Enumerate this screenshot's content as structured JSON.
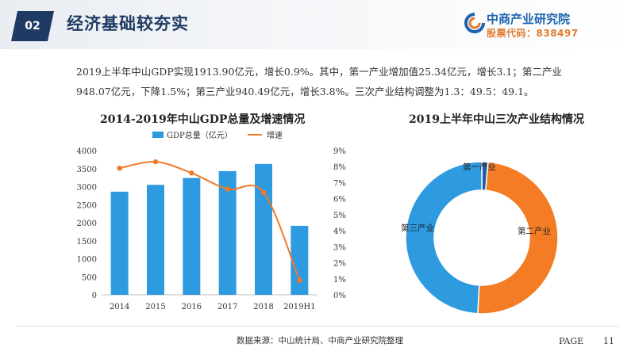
{
  "header": {
    "section_number": "02",
    "title": "经济基础较夯实",
    "logo_name": "中商产业研究院",
    "logo_code": "股票代码：838497"
  },
  "body_text": "2019上半年中山GDP实现1913.90亿元，增长0.9%。其中，第一产业增加值25.34亿元，增长3.1；第二产业948.07亿元，下降1.5%；第三产业940.49亿元，增长3.8%。三次产业结构调整为1.3：49.5：49.1。",
  "footer": {
    "source": "数据来源：中山统计局、中商产业研究院整理",
    "page_label": "PAGE",
    "page_number": "11"
  },
  "colors": {
    "bar": "#2e9ae0",
    "line": "#f07a28",
    "header_navy": "#1f3b63",
    "donut_primary": "#2e9ae0",
    "donut_secondary": "#f47c24",
    "donut_tertiary": "#1f5ea8"
  },
  "chart_data": [
    {
      "type": "bar",
      "title": "2014-2019年中山GDP总量及增速情况",
      "categories": [
        "2014",
        "2015",
        "2016",
        "2017",
        "2018",
        "2019H1"
      ],
      "series": [
        {
          "name": "GDP总量（亿元）",
          "type": "bar",
          "axis": "left",
          "values": [
            2860,
            3050,
            3240,
            3430,
            3630,
            1913.9
          ]
        },
        {
          "name": "增速",
          "type": "line",
          "axis": "right",
          "values": [
            7.9,
            8.3,
            7.6,
            6.6,
            6.4,
            0.9
          ]
        }
      ],
      "y_left": {
        "min": 0,
        "max": 4000,
        "step": 500,
        "ticks": [
          "0",
          "500",
          "1000",
          "1500",
          "2000",
          "2500",
          "3000",
          "3500",
          "4000"
        ]
      },
      "y_right": {
        "min": 0,
        "max": 9,
        "step": 1,
        "ticks": [
          "0%",
          "1%",
          "2%",
          "3%",
          "4%",
          "5%",
          "6%",
          "7%",
          "8%",
          "9%"
        ]
      },
      "legend_position": "top",
      "grid": false
    },
    {
      "type": "pie",
      "title": "2019上半年中山三次产业结构情况",
      "donut": true,
      "labels": [
        "第一产业",
        "第二产业",
        "第三产业"
      ],
      "values": [
        1.3,
        49.5,
        49.1
      ],
      "legend": false
    }
  ]
}
